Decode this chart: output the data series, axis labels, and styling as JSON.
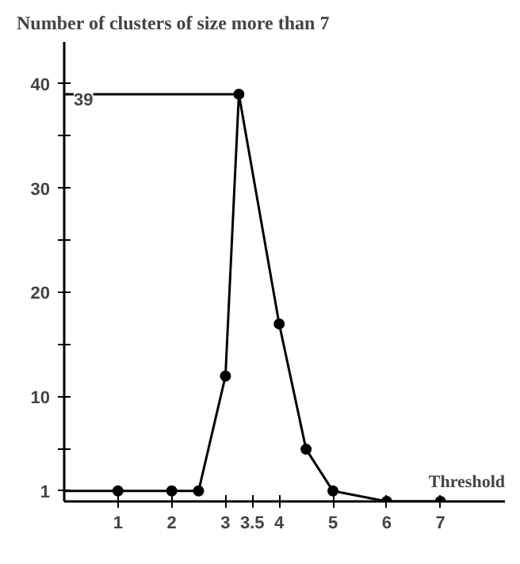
{
  "chart_data": {
    "type": "line",
    "title": "Number of clusters of size more than 7",
    "xlabel": "Threshold",
    "x": [
      1,
      2,
      2.5,
      3,
      3.25,
      4,
      4.5,
      5,
      6,
      7
    ],
    "series": [
      {
        "color": "#000000",
        "values": [
          1,
          1,
          1,
          12,
          39,
          17,
          5,
          1,
          0,
          0
        ]
      }
    ],
    "xlim": [
      0,
      8.2
    ],
    "ylim": [
      0,
      44
    ],
    "xticks": [
      1,
      2,
      3,
      {
        "value": 3.5,
        "label": "3.5"
      },
      4,
      5,
      6,
      7
    ],
    "yticks": [
      1,
      {
        "value": 5,
        "label": null
      },
      10,
      {
        "value": 15,
        "label": null
      },
      20,
      {
        "value": 25,
        "label": null
      },
      30,
      {
        "value": 35,
        "label": null
      },
      40
    ],
    "ref_lines": [
      {
        "axis": "y",
        "value": 39,
        "label": "39"
      },
      {
        "axis": "y",
        "value": 1
      }
    ],
    "grid": false,
    "marker": "circle",
    "line_style": "solid"
  }
}
